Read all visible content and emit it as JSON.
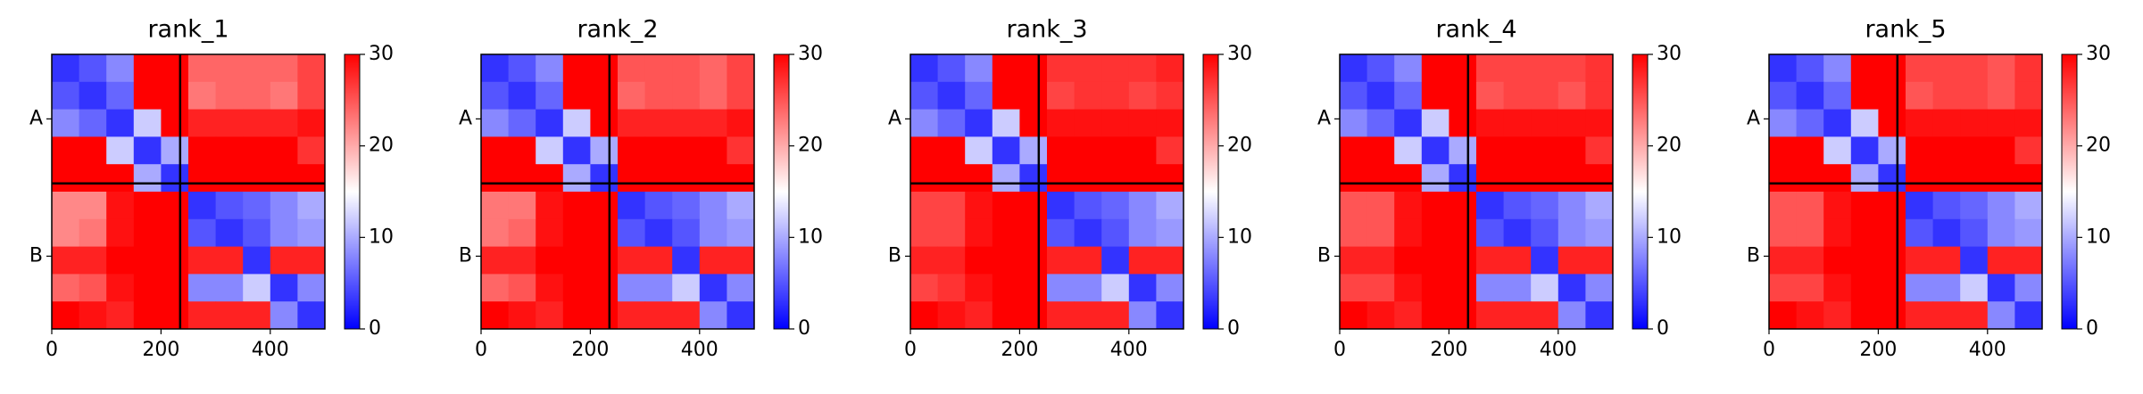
{
  "chart_data": [
    {
      "type": "heatmap",
      "title": "rank_1",
      "bins": [
        0,
        50,
        100,
        150,
        200,
        250,
        300,
        350,
        400,
        450,
        500
      ],
      "xlim": [
        0,
        500
      ],
      "ylim": [
        500,
        0
      ],
      "xticks": [
        0,
        200,
        400
      ],
      "yticks": [
        {
          "value": 117.5,
          "label": "A"
        },
        {
          "value": 367.5,
          "label": "B"
        }
      ],
      "boundary": 235,
      "clim": [
        0,
        30
      ],
      "cticks": [
        0,
        10,
        20,
        30
      ],
      "colors": [
        "#0000ff",
        "#ffffff",
        "#ff0000"
      ],
      "matrix": [
        [
          3,
          5,
          8,
          30,
          30,
          24,
          24,
          24,
          24,
          26
        ],
        [
          5,
          3,
          6,
          30,
          30,
          23,
          24,
          24,
          23,
          26
        ],
        [
          8,
          6,
          3,
          12,
          30,
          28,
          28,
          28,
          28,
          29
        ],
        [
          30,
          30,
          12,
          3,
          10,
          30,
          30,
          30,
          30,
          27
        ],
        [
          30,
          30,
          30,
          10,
          3,
          30,
          30,
          30,
          30,
          30
        ],
        [
          22,
          22,
          29,
          30,
          30,
          3,
          5,
          6,
          8,
          10
        ],
        [
          22,
          23,
          29,
          30,
          30,
          5,
          3,
          5,
          8,
          9
        ],
        [
          28,
          28,
          30,
          30,
          30,
          28,
          28,
          3,
          28,
          28
        ],
        [
          24,
          25,
          29,
          30,
          30,
          8,
          8,
          12,
          3,
          8
        ],
        [
          30,
          29,
          28,
          30,
          30,
          28,
          28,
          28,
          8,
          3
        ]
      ]
    },
    {
      "type": "heatmap",
      "title": "rank_2",
      "bins": [
        0,
        50,
        100,
        150,
        200,
        250,
        300,
        350,
        400,
        450,
        500
      ],
      "xlim": [
        0,
        500
      ],
      "ylim": [
        500,
        0
      ],
      "xticks": [
        0,
        200,
        400
      ],
      "yticks": [
        {
          "value": 117.5,
          "label": "A"
        },
        {
          "value": 367.5,
          "label": "B"
        }
      ],
      "boundary": 235,
      "clim": [
        0,
        30
      ],
      "cticks": [
        0,
        10,
        20,
        30
      ],
      "colors": [
        "#0000ff",
        "#ffffff",
        "#ff0000"
      ],
      "matrix": [
        [
          3,
          5,
          8,
          30,
          30,
          25,
          25,
          25,
          24,
          26
        ],
        [
          5,
          3,
          6,
          30,
          30,
          24,
          25,
          25,
          24,
          26
        ],
        [
          8,
          6,
          3,
          12,
          30,
          28,
          28,
          28,
          28,
          29
        ],
        [
          30,
          30,
          12,
          3,
          10,
          30,
          30,
          30,
          30,
          27
        ],
        [
          30,
          30,
          30,
          10,
          3,
          30,
          30,
          30,
          30,
          30
        ],
        [
          23,
          23,
          29,
          30,
          30,
          3,
          5,
          6,
          8,
          10
        ],
        [
          23,
          24,
          29,
          30,
          30,
          5,
          3,
          5,
          8,
          9
        ],
        [
          28,
          28,
          30,
          30,
          30,
          28,
          28,
          3,
          28,
          28
        ],
        [
          24,
          25,
          29,
          30,
          30,
          8,
          8,
          12,
          3,
          8
        ],
        [
          30,
          29,
          28,
          30,
          30,
          28,
          28,
          28,
          8,
          3
        ]
      ]
    },
    {
      "type": "heatmap",
      "title": "rank_3",
      "bins": [
        0,
        50,
        100,
        150,
        200,
        250,
        300,
        350,
        400,
        450,
        500
      ],
      "xlim": [
        0,
        500
      ],
      "ylim": [
        500,
        0
      ],
      "xticks": [
        0,
        200,
        400
      ],
      "yticks": [
        {
          "value": 117.5,
          "label": "A"
        },
        {
          "value": 367.5,
          "label": "B"
        }
      ],
      "boundary": 235,
      "clim": [
        0,
        30
      ],
      "cticks": [
        0,
        10,
        20,
        30
      ],
      "colors": [
        "#0000ff",
        "#ffffff",
        "#ff0000"
      ],
      "matrix": [
        [
          3,
          5,
          8,
          30,
          30,
          27,
          27,
          27,
          27,
          28
        ],
        [
          5,
          3,
          6,
          30,
          30,
          26,
          27,
          27,
          26,
          27
        ],
        [
          8,
          6,
          3,
          12,
          30,
          29,
          29,
          29,
          29,
          29
        ],
        [
          30,
          30,
          12,
          3,
          10,
          30,
          30,
          30,
          30,
          27
        ],
        [
          30,
          30,
          30,
          10,
          3,
          30,
          30,
          30,
          30,
          30
        ],
        [
          26,
          26,
          29,
          30,
          30,
          3,
          5,
          6,
          8,
          10
        ],
        [
          26,
          26,
          29,
          30,
          30,
          5,
          3,
          5,
          8,
          9
        ],
        [
          28,
          28,
          30,
          30,
          30,
          28,
          28,
          3,
          28,
          28
        ],
        [
          26,
          27,
          29,
          30,
          30,
          8,
          8,
          12,
          3,
          8
        ],
        [
          30,
          29,
          28,
          30,
          30,
          28,
          28,
          28,
          8,
          3
        ]
      ]
    },
    {
      "type": "heatmap",
      "title": "rank_4",
      "bins": [
        0,
        50,
        100,
        150,
        200,
        250,
        300,
        350,
        400,
        450,
        500
      ],
      "xlim": [
        0,
        500
      ],
      "ylim": [
        500,
        0
      ],
      "xticks": [
        0,
        200,
        400
      ],
      "yticks": [
        {
          "value": 117.5,
          "label": "A"
        },
        {
          "value": 367.5,
          "label": "B"
        }
      ],
      "boundary": 235,
      "clim": [
        0,
        30
      ],
      "cticks": [
        0,
        10,
        20,
        30
      ],
      "colors": [
        "#0000ff",
        "#ffffff",
        "#ff0000"
      ],
      "matrix": [
        [
          3,
          5,
          8,
          30,
          30,
          26,
          26,
          26,
          26,
          27
        ],
        [
          5,
          3,
          6,
          30,
          30,
          25,
          26,
          26,
          25,
          27
        ],
        [
          8,
          6,
          3,
          12,
          30,
          29,
          29,
          29,
          29,
          29
        ],
        [
          30,
          30,
          12,
          3,
          10,
          30,
          30,
          30,
          30,
          27
        ],
        [
          30,
          30,
          30,
          10,
          3,
          30,
          30,
          30,
          30,
          30
        ],
        [
          25,
          25,
          29,
          30,
          30,
          3,
          5,
          6,
          8,
          10
        ],
        [
          25,
          25,
          29,
          30,
          30,
          5,
          3,
          5,
          8,
          9
        ],
        [
          28,
          28,
          30,
          30,
          30,
          28,
          28,
          3,
          28,
          28
        ],
        [
          26,
          26,
          29,
          30,
          30,
          8,
          8,
          12,
          3,
          8
        ],
        [
          30,
          29,
          28,
          30,
          30,
          28,
          28,
          28,
          8,
          3
        ]
      ]
    },
    {
      "type": "heatmap",
      "title": "rank_5",
      "bins": [
        0,
        50,
        100,
        150,
        200,
        250,
        300,
        350,
        400,
        450,
        500
      ],
      "xlim": [
        0,
        500
      ],
      "ylim": [
        500,
        0
      ],
      "xticks": [
        0,
        200,
        400
      ],
      "yticks": [
        {
          "value": 117.5,
          "label": "A"
        },
        {
          "value": 367.5,
          "label": "B"
        }
      ],
      "boundary": 235,
      "clim": [
        0,
        30
      ],
      "cticks": [
        0,
        10,
        20,
        30
      ],
      "colors": [
        "#0000ff",
        "#ffffff",
        "#ff0000"
      ],
      "matrix": [
        [
          3,
          5,
          8,
          30,
          30,
          26,
          26,
          26,
          25,
          27
        ],
        [
          5,
          3,
          6,
          30,
          30,
          25,
          26,
          26,
          25,
          27
        ],
        [
          8,
          6,
          3,
          12,
          30,
          29,
          29,
          29,
          29,
          29
        ],
        [
          30,
          30,
          12,
          3,
          10,
          30,
          30,
          30,
          30,
          27
        ],
        [
          30,
          30,
          30,
          10,
          3,
          30,
          30,
          30,
          30,
          30
        ],
        [
          25,
          25,
          29,
          30,
          30,
          3,
          5,
          6,
          8,
          10
        ],
        [
          25,
          25,
          29,
          30,
          30,
          5,
          3,
          5,
          8,
          9
        ],
        [
          28,
          28,
          30,
          30,
          30,
          28,
          28,
          3,
          28,
          28
        ],
        [
          26,
          26,
          29,
          30,
          30,
          8,
          8,
          12,
          3,
          8
        ],
        [
          30,
          29,
          28,
          30,
          30,
          28,
          28,
          28,
          8,
          3
        ]
      ]
    }
  ]
}
